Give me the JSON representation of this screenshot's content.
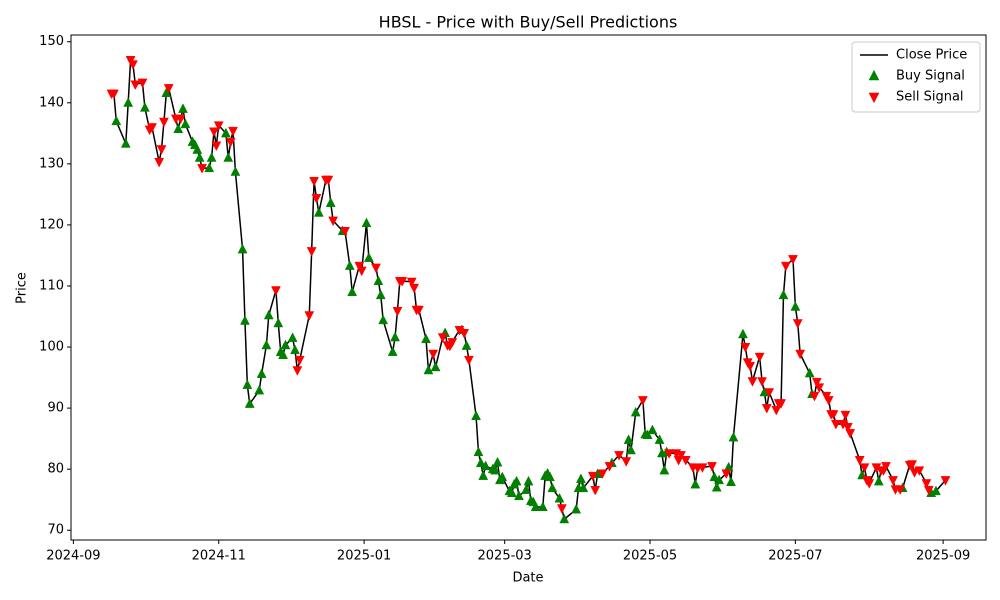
{
  "chart_data": {
    "type": "line",
    "title": "HBSL - Price with Buy/Sell Predictions",
    "x_label": "Date",
    "y_label": "Price",
    "xlim": [
      "2024-08-31",
      "2025-09-19"
    ],
    "ylim": [
      68.4,
      151.1
    ],
    "xticks": [
      {
        "value": "2024-09-01",
        "label": "2024-09"
      },
      {
        "value": "2024-11-01",
        "label": "2024-11"
      },
      {
        "value": "2025-01-01",
        "label": "2025-01"
      },
      {
        "value": "2025-03-01",
        "label": "2025-03"
      },
      {
        "value": "2025-05-01",
        "label": "2025-05"
      },
      {
        "value": "2025-07-01",
        "label": "2025-07"
      },
      {
        "value": "2025-09-01",
        "label": "2025-09"
      }
    ],
    "yticks": [
      70,
      80,
      90,
      100,
      110,
      120,
      130,
      140,
      150
    ],
    "grid": false,
    "legend": "upper right",
    "series": [
      {
        "name": "Close Price",
        "type": "line",
        "color": "#000000",
        "x": [
          "2024-09-17",
          "2024-09-18",
          "2024-09-19",
          "2024-09-23",
          "2024-09-24",
          "2024-09-25",
          "2024-09-26",
          "2024-09-27",
          "2024-09-30",
          "2024-10-01",
          "2024-10-03",
          "2024-10-04",
          "2024-10-07",
          "2024-10-08",
          "2024-10-09",
          "2024-10-10",
          "2024-10-11",
          "2024-10-14",
          "2024-10-15",
          "2024-10-16",
          "2024-10-17",
          "2024-10-18",
          "2024-10-21",
          "2024-10-22",
          "2024-10-23",
          "2024-10-24",
          "2024-10-25",
          "2024-10-28",
          "2024-10-29",
          "2024-10-30",
          "2024-10-31",
          "2024-11-01",
          "2024-11-04",
          "2024-11-05",
          "2024-11-06",
          "2024-11-07",
          "2024-11-08",
          "2024-11-11",
          "2024-11-12",
          "2024-11-13",
          "2024-11-14",
          "2024-11-18",
          "2024-11-19",
          "2024-11-21",
          "2024-11-22",
          "2024-11-25",
          "2024-11-26",
          "2024-11-27",
          "2024-11-28",
          "2024-11-29",
          "2024-12-02",
          "2024-12-03",
          "2024-12-04",
          "2024-12-05",
          "2024-12-09",
          "2024-12-10",
          "2024-12-11",
          "2024-12-12",
          "2024-12-13",
          "2024-12-16",
          "2024-12-17",
          "2024-12-18",
          "2024-12-19",
          "2024-12-23",
          "2024-12-24",
          "2024-12-26",
          "2024-12-27",
          "2024-12-30",
          "2024-12-31",
          "2025-01-02",
          "2025-01-03",
          "2025-01-06",
          "2025-01-07",
          "2025-01-08",
          "2025-01-09",
          "2025-01-13",
          "2025-01-14",
          "2025-01-15",
          "2025-01-16",
          "2025-01-17",
          "2025-01-21",
          "2025-01-22",
          "2025-01-23",
          "2025-01-24",
          "2025-01-27",
          "2025-01-28",
          "2025-01-30",
          "2025-01-31",
          "2025-02-03",
          "2025-02-04",
          "2025-02-05",
          "2025-02-06",
          "2025-02-07",
          "2025-02-10",
          "2025-02-11",
          "2025-02-12",
          "2025-02-13",
          "2025-02-14",
          "2025-02-17",
          "2025-02-18",
          "2025-02-19",
          "2025-02-20",
          "2025-02-21",
          "2025-02-24",
          "2025-02-25",
          "2025-02-26",
          "2025-02-27",
          "2025-02-28",
          "2025-03-03",
          "2025-03-04",
          "2025-03-05",
          "2025-03-06",
          "2025-03-07",
          "2025-03-10",
          "2025-03-11",
          "2025-03-12",
          "2025-03-13",
          "2025-03-14",
          "2025-03-17",
          "2025-03-18",
          "2025-03-19",
          "2025-03-20",
          "2025-03-21",
          "2025-03-24",
          "2025-03-25",
          "2025-03-26",
          "2025-03-31",
          "2025-04-01",
          "2025-04-02",
          "2025-04-03",
          "2025-04-07",
          "2025-04-08",
          "2025-04-09",
          "2025-04-11",
          "2025-04-14",
          "2025-04-15",
          "2025-04-18",
          "2025-04-21",
          "2025-04-22",
          "2025-04-23",
          "2025-04-25",
          "2025-04-28",
          "2025-04-29",
          "2025-04-30",
          "2025-05-02",
          "2025-05-05",
          "2025-05-06",
          "2025-05-07",
          "2025-05-08",
          "2025-05-09",
          "2025-05-12",
          "2025-05-13",
          "2025-05-14",
          "2025-05-16",
          "2025-05-19",
          "2025-05-20",
          "2025-05-21",
          "2025-05-23",
          "2025-05-27",
          "2025-05-28",
          "2025-05-29",
          "2025-05-30",
          "2025-06-02",
          "2025-06-03",
          "2025-06-04",
          "2025-06-05",
          "2025-06-09",
          "2025-06-10",
          "2025-06-11",
          "2025-06-12",
          "2025-06-13",
          "2025-06-16",
          "2025-06-17",
          "2025-06-18",
          "2025-06-19",
          "2025-06-20",
          "2025-06-23",
          "2025-06-24",
          "2025-06-25",
          "2025-06-26",
          "2025-06-27",
          "2025-06-30",
          "2025-07-01",
          "2025-07-02",
          "2025-07-03",
          "2025-07-07",
          "2025-07-08",
          "2025-07-09",
          "2025-07-10",
          "2025-07-11",
          "2025-07-14",
          "2025-07-15",
          "2025-07-16",
          "2025-07-17",
          "2025-07-18",
          "2025-07-21",
          "2025-07-22",
          "2025-07-23",
          "2025-07-24",
          "2025-07-28",
          "2025-07-29",
          "2025-07-30",
          "2025-07-31",
          "2025-08-01",
          "2025-08-04",
          "2025-08-05",
          "2025-08-06",
          "2025-08-07",
          "2025-08-08",
          "2025-08-11",
          "2025-08-12",
          "2025-08-14",
          "2025-08-15",
          "2025-08-18",
          "2025-08-19",
          "2025-08-20",
          "2025-08-22",
          "2025-08-25",
          "2025-08-26",
          "2025-08-27",
          "2025-08-29",
          "2025-09-02"
        ],
        "values": [
          141.5,
          141.5,
          137,
          133.3,
          140,
          147,
          146.3,
          143,
          143.3,
          139.2,
          135.6,
          136,
          130.3,
          132.4,
          136.9,
          141.6,
          142.4,
          137.4,
          135.7,
          137.4,
          139,
          136.5,
          133.6,
          133.1,
          132.3,
          131,
          129.3,
          129.3,
          131,
          135.3,
          133,
          136.3,
          135,
          131,
          133.6,
          135.4,
          128.7,
          116,
          104.3,
          93.8,
          90.7,
          92.9,
          95.6,
          100.3,
          105.2,
          109.3,
          103.9,
          99.2,
          98.7,
          100.3,
          101.5,
          99.5,
          96.2,
          97.9,
          105.2,
          115.7,
          127.2,
          124.4,
          122,
          127.4,
          127.4,
          123.6,
          120.7,
          119,
          119,
          113.3,
          109,
          113.3,
          112.5,
          120.3,
          114.6,
          113,
          110.8,
          108.5,
          104.4,
          99.2,
          101.6,
          105.9,
          110.8,
          110.8,
          110.7,
          109.7,
          106.1,
          106.1,
          101.3,
          96.2,
          98.9,
          96.7,
          101.6,
          102.3,
          100.3,
          100.2,
          100.8,
          102.8,
          102.8,
          102.3,
          100.2,
          97.9,
          88.7,
          82.8,
          81,
          78.9,
          80.5,
          80,
          79.8,
          81.1,
          78.2,
          78.7,
          76.4,
          76.1,
          77.5,
          78,
          75.6,
          76.6,
          78,
          74.8,
          74.6,
          73.8,
          73.8,
          78.9,
          79.3,
          78.7,
          76.9,
          75.2,
          73.6,
          71.8,
          73.4,
          76.9,
          78.4,
          76.9,
          78.9,
          76.6,
          79.2,
          79.3,
          80.5,
          81,
          82.3,
          81.3,
          84.8,
          83.1,
          89.3,
          91.3,
          85.7,
          85.6,
          86.4,
          84.8,
          82.6,
          79.8,
          82.8,
          82.6,
          82.6,
          81.5,
          82.3,
          81.5,
          80.3,
          77.5,
          80.2,
          80.3,
          80.5,
          78.7,
          77,
          78.2,
          79.3,
          80.3,
          77.9,
          85.2,
          102.1,
          100,
          97.5,
          96.9,
          94.4,
          98.4,
          94.4,
          92.6,
          90,
          92.6,
          89.7,
          90.8,
          90.8,
          108.5,
          113.3,
          114.4,
          106.6,
          103.9,
          98.9,
          95.7,
          92.3,
          92,
          94.3,
          93.4,
          92,
          91.3,
          89,
          89,
          87.4,
          87.4,
          88.9,
          86.9,
          85.9,
          81.5,
          79,
          80.3,
          78.2,
          77.7,
          80.3,
          78,
          79.8,
          79.8,
          80.5,
          78.2,
          76.7,
          76.7,
          76.9,
          80.7,
          80.8,
          79.5,
          79.8,
          77.7,
          76.6,
          76.1,
          76.4,
          78.2
        ]
      },
      {
        "name": "Buy Signal",
        "type": "scatter",
        "marker": "triangle-up",
        "color": "#008000",
        "x": [
          "2024-09-19",
          "2024-09-23",
          "2024-09-24",
          "2024-10-01",
          "2024-10-10",
          "2024-10-15",
          "2024-10-17",
          "2024-10-18",
          "2024-10-21",
          "2024-10-22",
          "2024-10-23",
          "2024-10-24",
          "2024-10-28",
          "2024-10-29",
          "2024-11-04",
          "2024-11-05",
          "2024-11-08",
          "2024-11-11",
          "2024-11-12",
          "2024-11-13",
          "2024-11-14",
          "2024-11-18",
          "2024-11-19",
          "2024-11-21",
          "2024-11-22",
          "2024-11-26",
          "2024-11-27",
          "2024-11-28",
          "2024-11-29",
          "2024-12-02",
          "2024-12-03",
          "2024-12-13",
          "2024-12-18",
          "2024-12-23",
          "2024-12-26",
          "2024-12-27",
          "2025-01-02",
          "2025-01-03",
          "2025-01-07",
          "2025-01-08",
          "2025-01-09",
          "2025-01-13",
          "2025-01-14",
          "2025-01-27",
          "2025-01-28",
          "2025-01-31",
          "2025-02-04",
          "2025-02-11",
          "2025-02-13",
          "2025-02-17",
          "2025-02-18",
          "2025-02-19",
          "2025-02-20",
          "2025-02-21",
          "2025-02-24",
          "2025-02-25",
          "2025-02-26",
          "2025-02-27",
          "2025-02-28",
          "2025-03-03",
          "2025-03-04",
          "2025-03-05",
          "2025-03-06",
          "2025-03-07",
          "2025-03-10",
          "2025-03-11",
          "2025-03-12",
          "2025-03-13",
          "2025-03-14",
          "2025-03-17",
          "2025-03-18",
          "2025-03-19",
          "2025-03-20",
          "2025-03-21",
          "2025-03-24",
          "2025-03-26",
          "2025-03-31",
          "2025-04-01",
          "2025-04-02",
          "2025-04-03",
          "2025-04-09",
          "2025-04-15",
          "2025-04-22",
          "2025-04-23",
          "2025-04-25",
          "2025-04-29",
          "2025-04-30",
          "2025-05-02",
          "2025-05-05",
          "2025-05-06",
          "2025-05-07",
          "2025-05-08",
          "2025-05-20",
          "2025-05-28",
          "2025-05-29",
          "2025-05-30",
          "2025-06-03",
          "2025-06-04",
          "2025-06-05",
          "2025-06-09",
          "2025-06-18",
          "2025-06-26",
          "2025-07-01",
          "2025-07-07",
          "2025-07-08",
          "2025-07-29",
          "2025-08-05",
          "2025-08-15",
          "2025-08-27",
          "2025-08-29"
        ],
        "values": [
          137,
          133.3,
          140,
          139.2,
          141.6,
          135.7,
          139,
          136.5,
          133.6,
          133.1,
          132.3,
          131,
          129.3,
          131,
          135,
          131,
          128.7,
          116,
          104.3,
          93.8,
          90.7,
          92.9,
          95.6,
          100.3,
          105.2,
          103.9,
          99.2,
          98.7,
          100.3,
          101.5,
          99.5,
          122,
          123.6,
          119,
          113.3,
          109,
          120.3,
          114.6,
          110.8,
          108.5,
          104.4,
          99.2,
          101.6,
          101.3,
          96.2,
          96.7,
          102.3,
          102.8,
          100.2,
          88.7,
          82.8,
          81,
          78.9,
          80.5,
          80,
          79.8,
          81.1,
          78.2,
          78.7,
          76.4,
          76.1,
          77.5,
          78,
          75.6,
          76.6,
          78,
          74.8,
          74.6,
          73.8,
          73.8,
          78.9,
          79.3,
          78.7,
          76.9,
          75.2,
          71.8,
          73.4,
          76.9,
          78.4,
          76.9,
          79.2,
          81,
          84.8,
          83.1,
          89.3,
          85.7,
          85.6,
          86.4,
          84.8,
          82.6,
          79.8,
          82.8,
          77.5,
          78.7,
          77,
          78.2,
          80.3,
          77.9,
          85.2,
          102.1,
          92.6,
          108.5,
          106.6,
          95.7,
          92.3,
          79,
          78,
          76.9,
          76.1,
          76.4
        ]
      },
      {
        "name": "Sell Signal",
        "type": "scatter",
        "marker": "triangle-down",
        "color": "#ff0000",
        "x": [
          "2024-09-17",
          "2024-09-18",
          "2024-09-25",
          "2024-09-26",
          "2024-09-27",
          "2024-09-30",
          "2024-10-03",
          "2024-10-04",
          "2024-10-07",
          "2024-10-08",
          "2024-10-09",
          "2024-10-11",
          "2024-10-14",
          "2024-10-16",
          "2024-10-25",
          "2024-10-30",
          "2024-10-31",
          "2024-11-01",
          "2024-11-06",
          "2024-11-07",
          "2024-11-25",
          "2024-12-04",
          "2024-12-05",
          "2024-12-09",
          "2024-12-10",
          "2024-12-11",
          "2024-12-12",
          "2024-12-16",
          "2024-12-17",
          "2024-12-19",
          "2024-12-24",
          "2024-12-30",
          "2024-12-31",
          "2025-01-06",
          "2025-01-15",
          "2025-01-16",
          "2025-01-17",
          "2025-01-21",
          "2025-01-22",
          "2025-01-23",
          "2025-01-24",
          "2025-01-30",
          "2025-02-03",
          "2025-02-05",
          "2025-02-06",
          "2025-02-07",
          "2025-02-10",
          "2025-02-12",
          "2025-02-14",
          "2025-03-25",
          "2025-04-07",
          "2025-04-08",
          "2025-04-11",
          "2025-04-14",
          "2025-04-18",
          "2025-04-21",
          "2025-04-28",
          "2025-05-09",
          "2025-05-12",
          "2025-05-13",
          "2025-05-14",
          "2025-05-16",
          "2025-05-19",
          "2025-05-21",
          "2025-05-23",
          "2025-05-27",
          "2025-06-02",
          "2025-06-10",
          "2025-06-11",
          "2025-06-12",
          "2025-06-13",
          "2025-06-16",
          "2025-06-17",
          "2025-06-19",
          "2025-06-20",
          "2025-06-23",
          "2025-06-24",
          "2025-06-25",
          "2025-06-27",
          "2025-06-30",
          "2025-07-02",
          "2025-07-03",
          "2025-07-09",
          "2025-07-10",
          "2025-07-11",
          "2025-07-14",
          "2025-07-15",
          "2025-07-16",
          "2025-07-17",
          "2025-07-18",
          "2025-07-21",
          "2025-07-22",
          "2025-07-23",
          "2025-07-24",
          "2025-07-28",
          "2025-07-30",
          "2025-07-31",
          "2025-08-01",
          "2025-08-04",
          "2025-08-06",
          "2025-08-07",
          "2025-08-08",
          "2025-08-11",
          "2025-08-12",
          "2025-08-14",
          "2025-08-18",
          "2025-08-19",
          "2025-08-20",
          "2025-08-22",
          "2025-08-25",
          "2025-08-26",
          "2025-09-02"
        ],
        "values": [
          141.5,
          141.5,
          147,
          146.3,
          143,
          143.3,
          135.6,
          136,
          130.3,
          132.4,
          136.9,
          142.4,
          137.4,
          137.4,
          129.3,
          135.3,
          133,
          136.3,
          133.6,
          135.4,
          109.3,
          96.2,
          97.9,
          105.2,
          115.7,
          127.2,
          124.4,
          127.4,
          127.4,
          120.7,
          119,
          113.3,
          112.5,
          113,
          105.9,
          110.8,
          110.8,
          110.7,
          109.7,
          106.1,
          106.1,
          98.9,
          101.6,
          100.3,
          100.2,
          100.8,
          102.8,
          102.3,
          97.9,
          73.6,
          78.9,
          76.6,
          79.3,
          80.5,
          82.3,
          81.3,
          91.3,
          82.6,
          82.6,
          81.5,
          82.3,
          81.5,
          80.3,
          80.2,
          80.3,
          80.5,
          79.3,
          100,
          97.5,
          96.9,
          94.4,
          98.4,
          94.4,
          90,
          92.6,
          89.7,
          90.8,
          90.8,
          113.3,
          114.4,
          103.9,
          98.9,
          92,
          94.3,
          93.4,
          92,
          91.3,
          89,
          89,
          87.4,
          87.4,
          88.9,
          86.9,
          85.9,
          81.5,
          80.3,
          78.2,
          77.7,
          80.3,
          79.8,
          79.8,
          80.5,
          78.2,
          76.7,
          76.7,
          80.7,
          80.8,
          79.5,
          79.8,
          77.7,
          76.6,
          78.2
        ]
      }
    ]
  }
}
